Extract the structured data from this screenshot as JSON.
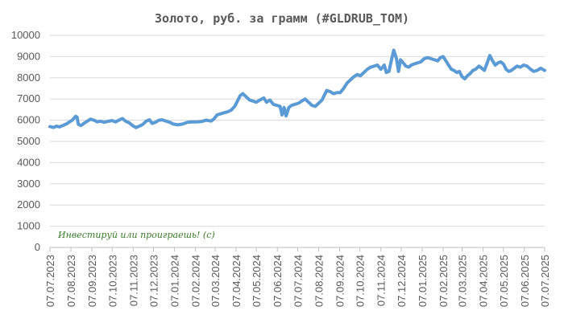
{
  "chart_data": {
    "type": "line",
    "title": "Золото, руб. за грамм (#GLDRUB_TOM)",
    "xlabel": "",
    "ylabel": "",
    "ylim": [
      0,
      10000
    ],
    "yticks": [
      0,
      1000,
      2000,
      3000,
      4000,
      5000,
      6000,
      7000,
      8000,
      9000,
      10000
    ],
    "xlim": [
      "2023-07-07",
      "2025-07-07"
    ],
    "xticks": [
      "07.07.2023",
      "07.08.2023",
      "07.09.2023",
      "07.10.2023",
      "07.11.2023",
      "07.12.2023",
      "07.01.2024",
      "07.02.2024",
      "07.03.2024",
      "07.04.2024",
      "07.05.2024",
      "07.06.2024",
      "07.07.2024",
      "07.08.2024",
      "07.09.2024",
      "07.10.2024",
      "07.11.2024",
      "07.12.2024",
      "07.01.2025",
      "07.02.2025",
      "07.03.2025",
      "07.04.2025",
      "07.05.2025",
      "07.06.2025",
      "07.07.2025"
    ],
    "grid": true,
    "legend": "none",
    "line_color": "#5b9bd5",
    "annotation": "Инвестируй или проиграешь! (с)",
    "series": [
      {
        "points": [
          [
            "2023-07-07",
            5700
          ],
          [
            "2023-07-12",
            5660
          ],
          [
            "2023-07-17",
            5720
          ],
          [
            "2023-07-21",
            5680
          ],
          [
            "2023-07-26",
            5750
          ],
          [
            "2023-07-31",
            5820
          ],
          [
            "2023-08-04",
            5900
          ],
          [
            "2023-08-09",
            6000
          ],
          [
            "2023-08-14",
            6180
          ],
          [
            "2023-08-16",
            6150
          ],
          [
            "2023-08-18",
            5800
          ],
          [
            "2023-08-22",
            5750
          ],
          [
            "2023-08-26",
            5850
          ],
          [
            "2023-08-31",
            5950
          ],
          [
            "2023-09-05",
            6050
          ],
          [
            "2023-09-10",
            6000
          ],
          [
            "2023-09-15",
            5920
          ],
          [
            "2023-09-20",
            5950
          ],
          [
            "2023-09-25",
            5900
          ],
          [
            "2023-10-01",
            5950
          ],
          [
            "2023-10-07",
            5980
          ],
          [
            "2023-10-12",
            5920
          ],
          [
            "2023-10-18",
            6020
          ],
          [
            "2023-10-22",
            6080
          ],
          [
            "2023-10-27",
            5950
          ],
          [
            "2023-11-01",
            5880
          ],
          [
            "2023-11-06",
            5750
          ],
          [
            "2023-11-11",
            5650
          ],
          [
            "2023-11-16",
            5720
          ],
          [
            "2023-11-21",
            5800
          ],
          [
            "2023-11-26",
            5950
          ],
          [
            "2023-12-01",
            6020
          ],
          [
            "2023-12-05",
            5850
          ],
          [
            "2023-12-10",
            5900
          ],
          [
            "2023-12-15",
            6000
          ],
          [
            "2023-12-20",
            6020
          ],
          [
            "2023-12-26",
            5950
          ],
          [
            "2023-12-31",
            5900
          ],
          [
            "2024-01-05",
            5820
          ],
          [
            "2024-01-12",
            5780
          ],
          [
            "2024-01-19",
            5820
          ],
          [
            "2024-01-26",
            5900
          ],
          [
            "2024-02-02",
            5920
          ],
          [
            "2024-02-09",
            5920
          ],
          [
            "2024-02-16",
            5940
          ],
          [
            "2024-02-23",
            6000
          ],
          [
            "2024-03-01",
            5960
          ],
          [
            "2024-03-05",
            6050
          ],
          [
            "2024-03-10",
            6250
          ],
          [
            "2024-03-15",
            6300
          ],
          [
            "2024-03-20",
            6350
          ],
          [
            "2024-03-26",
            6400
          ],
          [
            "2024-03-31",
            6480
          ],
          [
            "2024-04-05",
            6650
          ],
          [
            "2024-04-09",
            6900
          ],
          [
            "2024-04-13",
            7150
          ],
          [
            "2024-04-17",
            7250
          ],
          [
            "2024-04-22",
            7100
          ],
          [
            "2024-04-27",
            6950
          ],
          [
            "2024-05-02",
            6900
          ],
          [
            "2024-05-07",
            6850
          ],
          [
            "2024-05-12",
            6950
          ],
          [
            "2024-05-18",
            7050
          ],
          [
            "2024-05-22",
            6850
          ],
          [
            "2024-05-27",
            6950
          ],
          [
            "2024-06-01",
            6750
          ],
          [
            "2024-06-06",
            6700
          ],
          [
            "2024-06-11",
            6650
          ],
          [
            "2024-06-14",
            6250
          ],
          [
            "2024-06-17",
            6600
          ],
          [
            "2024-06-20",
            6200
          ],
          [
            "2024-06-24",
            6600
          ],
          [
            "2024-06-28",
            6700
          ],
          [
            "2024-07-03",
            6750
          ],
          [
            "2024-07-08",
            6800
          ],
          [
            "2024-07-13",
            6900
          ],
          [
            "2024-07-18",
            7000
          ],
          [
            "2024-07-23",
            6850
          ],
          [
            "2024-07-28",
            6700
          ],
          [
            "2024-08-02",
            6650
          ],
          [
            "2024-08-07",
            6800
          ],
          [
            "2024-08-12",
            6950
          ],
          [
            "2024-08-15",
            7150
          ],
          [
            "2024-08-19",
            7400
          ],
          [
            "2024-08-24",
            7350
          ],
          [
            "2024-08-29",
            7250
          ],
          [
            "2024-09-03",
            7300
          ],
          [
            "2024-09-08",
            7300
          ],
          [
            "2024-09-13",
            7500
          ],
          [
            "2024-09-18",
            7750
          ],
          [
            "2024-09-23",
            7900
          ],
          [
            "2024-09-28",
            8050
          ],
          [
            "2024-10-03",
            8150
          ],
          [
            "2024-10-08",
            8100
          ],
          [
            "2024-10-13",
            8250
          ],
          [
            "2024-10-18",
            8400
          ],
          [
            "2024-10-23",
            8500
          ],
          [
            "2024-10-28",
            8550
          ],
          [
            "2024-11-02",
            8600
          ],
          [
            "2024-11-07",
            8400
          ],
          [
            "2024-11-12",
            8600
          ],
          [
            "2024-11-15",
            8250
          ],
          [
            "2024-11-19",
            8300
          ],
          [
            "2024-11-23",
            8900
          ],
          [
            "2024-11-26",
            9300
          ],
          [
            "2024-11-30",
            8900
          ],
          [
            "2024-12-03",
            8300
          ],
          [
            "2024-12-06",
            8850
          ],
          [
            "2024-12-10",
            8700
          ],
          [
            "2024-12-14",
            8550
          ],
          [
            "2024-12-18",
            8500
          ],
          [
            "2024-12-22",
            8600
          ],
          [
            "2024-12-26",
            8650
          ],
          [
            "2024-12-31",
            8700
          ],
          [
            "2025-01-05",
            8750
          ],
          [
            "2025-01-10",
            8900
          ],
          [
            "2025-01-15",
            8950
          ],
          [
            "2025-01-20",
            8900
          ],
          [
            "2025-01-25",
            8850
          ],
          [
            "2025-01-30",
            8800
          ],
          [
            "2025-02-03",
            8950
          ],
          [
            "2025-02-07",
            9000
          ],
          [
            "2025-02-11",
            8800
          ],
          [
            "2025-02-15",
            8600
          ],
          [
            "2025-02-19",
            8400
          ],
          [
            "2025-02-23",
            8350
          ],
          [
            "2025-02-27",
            8250
          ],
          [
            "2025-03-03",
            8300
          ],
          [
            "2025-03-07",
            8050
          ],
          [
            "2025-03-11",
            7950
          ],
          [
            "2025-03-15",
            8100
          ],
          [
            "2025-03-19",
            8200
          ],
          [
            "2025-03-23",
            8350
          ],
          [
            "2025-03-27",
            8400
          ],
          [
            "2025-04-01",
            8550
          ],
          [
            "2025-04-05",
            8450
          ],
          [
            "2025-04-09",
            8350
          ],
          [
            "2025-04-13",
            8700
          ],
          [
            "2025-04-17",
            9050
          ],
          [
            "2025-04-21",
            8800
          ],
          [
            "2025-04-25",
            8600
          ],
          [
            "2025-04-29",
            8700
          ],
          [
            "2025-05-03",
            8750
          ],
          [
            "2025-05-07",
            8650
          ],
          [
            "2025-05-11",
            8400
          ],
          [
            "2025-05-15",
            8300
          ],
          [
            "2025-05-19",
            8350
          ],
          [
            "2025-05-23",
            8450
          ],
          [
            "2025-05-27",
            8550
          ],
          [
            "2025-06-01",
            8500
          ],
          [
            "2025-06-06",
            8600
          ],
          [
            "2025-06-11",
            8550
          ],
          [
            "2025-06-16",
            8400
          ],
          [
            "2025-06-21",
            8300
          ],
          [
            "2025-06-26",
            8350
          ],
          [
            "2025-07-01",
            8450
          ],
          [
            "2025-07-07",
            8350
          ]
        ]
      }
    ]
  }
}
